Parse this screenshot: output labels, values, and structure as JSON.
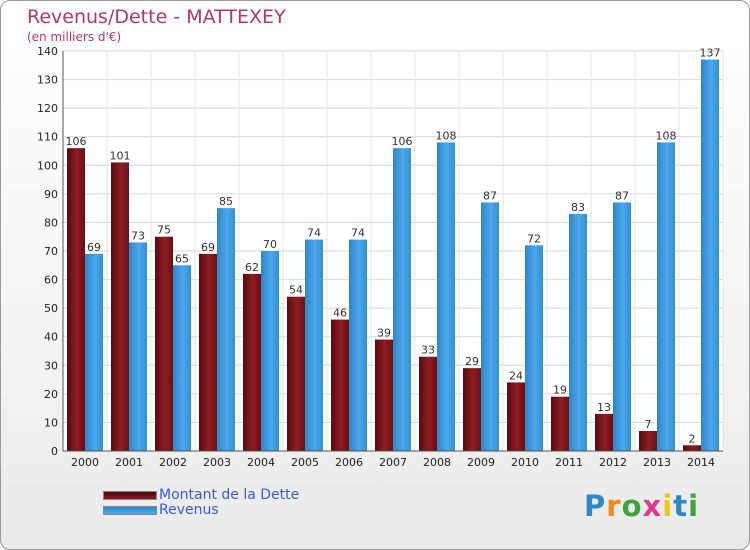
{
  "title": "Revenus/Dette - MATTEXEY",
  "subtitle": "(en milliers d'€)",
  "brand": "Proxiti",
  "colors": {
    "dette": "#7a1418",
    "revenus": "#3a9be0",
    "title": "#b5385e",
    "legend_text": "#3b5bdb"
  },
  "chart_data": {
    "type": "bar",
    "title": "Revenus/Dette - MATTEXEY",
    "ylabel": "(en milliers d'€)",
    "xlabel": "",
    "ylim": [
      0,
      140
    ],
    "yticks": [
      0,
      10,
      20,
      30,
      40,
      50,
      60,
      70,
      80,
      90,
      100,
      110,
      120,
      130,
      140
    ],
    "grid": true,
    "legend_position": "bottom-left",
    "categories": [
      "2000",
      "2001",
      "2002",
      "2003",
      "2004",
      "2005",
      "2006",
      "2007",
      "2008",
      "2009",
      "2010",
      "2011",
      "2012",
      "2013",
      "2014"
    ],
    "series": [
      {
        "name": "Montant de la Dette",
        "values": [
          106,
          101,
          75,
          69,
          62,
          54,
          46,
          39,
          33,
          29,
          24,
          19,
          13,
          7,
          2
        ]
      },
      {
        "name": "Revenus",
        "values": [
          69,
          73,
          65,
          85,
          70,
          74,
          74,
          106,
          108,
          87,
          72,
          83,
          87,
          108,
          137
        ]
      }
    ]
  }
}
